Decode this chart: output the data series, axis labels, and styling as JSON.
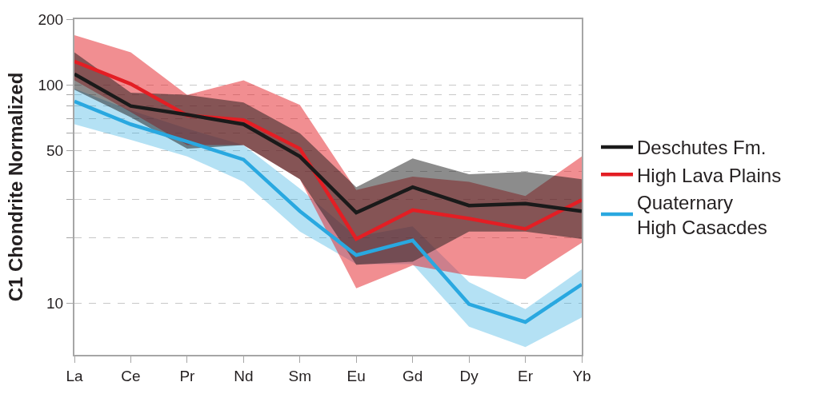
{
  "chart_data": {
    "type": "line",
    "ylabel": "C1 Chondrite Normalized",
    "categories": [
      "La",
      "Ce",
      "Pr",
      "Nd",
      "Sm",
      "Eu",
      "Gd",
      "Dy",
      "Er",
      "Yb"
    ],
    "series": [
      {
        "name": "Deschutes Fm.",
        "color": "#1a1a1a",
        "values": [
          112,
          80,
          73,
          66,
          47,
          26,
          34,
          28,
          28.6,
          26.4
        ],
        "upper": [
          141,
          92,
          90,
          83,
          60,
          34,
          46,
          39,
          40,
          37
        ],
        "lower": [
          95,
          71,
          51,
          53,
          37,
          15,
          15.5,
          21.3,
          21.3,
          19.7
        ]
      },
      {
        "name": "High Lava Plains",
        "color": "#e31e24",
        "values": [
          128,
          101,
          72.5,
          69,
          51,
          19.7,
          26.7,
          24.4,
          21.9,
          29.7
        ],
        "upper": [
          169,
          141,
          90,
          105,
          81,
          33,
          38,
          36,
          31,
          47
        ],
        "lower": [
          105,
          75,
          53,
          53,
          37,
          11.7,
          14.9,
          13.4,
          12.9,
          18.9
        ]
      },
      {
        "name": "Quaternary\nHigh Casacdes",
        "color": "#29a8e0",
        "values": [
          84,
          66,
          55,
          45.5,
          26.4,
          16.6,
          19.4,
          9.9,
          8.2,
          12.2
        ],
        "upper": [
          96,
          76.5,
          63,
          53,
          33.5,
          20.2,
          22.5,
          12.5,
          9.4,
          14.3
        ],
        "lower": [
          66,
          56,
          47,
          36,
          21.3,
          15.1,
          15.1,
          7.8,
          6.3,
          8.6
        ]
      }
    ],
    "log": "y",
    "ylim": [
      5.8,
      200
    ],
    "yticks": [
      10,
      {
        "value": 20,
        "label": null
      },
      {
        "value": 30,
        "label": null
      },
      {
        "value": 40,
        "label": null
      },
      50,
      {
        "value": 60,
        "label": null
      },
      {
        "value": 70,
        "label": null
      },
      {
        "value": 80,
        "label": null
      },
      {
        "value": 90,
        "label": null
      },
      100,
      200
    ],
    "grid": "y",
    "legend": "right",
    "line_style": "solid",
    "marker": "none"
  }
}
